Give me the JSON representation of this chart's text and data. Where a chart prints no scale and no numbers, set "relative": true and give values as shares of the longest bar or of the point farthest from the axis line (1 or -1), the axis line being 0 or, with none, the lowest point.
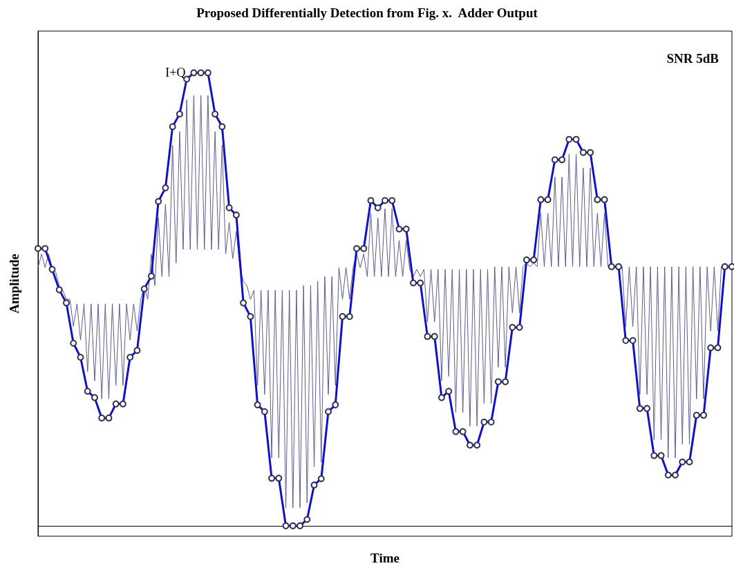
{
  "chart_data": {
    "type": "line",
    "relative": true,
    "title": "Proposed Differentially Detection from Fig. x.  Adder Output",
    "xlabel": "Time",
    "ylabel": "Amplitude",
    "annotations": [
      "I+Q",
      "SNR 5dB"
    ],
    "categories": [
      null,
      null,
      null,
      null,
      null,
      null,
      null,
      null,
      null,
      null,
      null,
      null,
      null,
      null,
      null,
      null,
      null,
      null,
      null,
      null,
      null,
      null,
      null,
      null,
      null,
      null,
      null,
      null,
      null,
      null,
      null,
      null,
      null,
      null,
      null,
      null,
      null,
      null,
      null,
      null,
      null,
      null,
      null,
      null,
      null,
      null,
      null,
      null,
      null,
      null,
      null,
      null,
      null,
      null,
      null,
      null,
      null,
      null,
      null,
      null,
      null,
      null,
      null,
      null,
      null,
      null,
      null,
      null,
      null,
      null,
      null,
      null,
      null,
      null,
      null,
      null,
      null,
      null,
      null,
      null,
      null,
      null,
      null,
      null,
      null,
      null,
      null,
      null,
      null,
      null,
      null,
      null,
      null,
      null,
      null,
      null,
      null,
      null,
      null,
      null,
      null,
      null,
      null,
      null,
      null,
      null,
      null,
      null,
      null,
      null,
      null,
      null,
      null,
      null,
      null,
      null,
      null,
      null,
      null,
      null,
      null,
      null,
      null,
      null,
      null,
      null,
      null,
      null,
      null,
      null,
      null,
      null,
      null,
      null,
      null,
      null,
      null,
      null,
      null,
      null,
      null,
      null,
      null,
      null,
      null,
      null,
      null,
      null,
      null,
      null,
      null,
      null,
      null,
      null,
      null,
      null,
      null,
      null,
      null,
      null,
      null,
      null,
      null,
      null,
      null,
      null,
      null,
      null,
      null,
      null,
      null,
      null,
      null,
      null,
      null,
      null,
      null,
      null,
      null,
      null,
      null,
      null,
      null,
      null,
      null,
      null,
      null,
      null,
      null,
      null,
      null,
      null,
      null,
      null,
      null,
      null,
      null
    ],
    "series": [
      {
        "color": "#5b5b8c",
        "marker": "none",
        "values": [
          0.57,
          0.6,
          0.57,
          0.6,
          0.57,
          0.56,
          0.53,
          0.52,
          0.5,
          0.5,
          0.44,
          0.49,
          0.41,
          0.49,
          0.34,
          0.49,
          0.32,
          0.49,
          0.28,
          0.49,
          0.28,
          0.49,
          0.31,
          0.49,
          0.31,
          0.49,
          0.41,
          0.49,
          0.43,
          0.5,
          0.53,
          0.5,
          0.6,
          0.53,
          0.68,
          0.55,
          0.71,
          0.55,
          0.84,
          0.58,
          0.87,
          0.61,
          0.94,
          0.61,
          0.95,
          0.61,
          0.95,
          0.61,
          0.95,
          0.61,
          0.87,
          0.61,
          0.84,
          0.6,
          0.67,
          0.59,
          0.65,
          0.57,
          0.54,
          0.53,
          0.5,
          0.52,
          0.31,
          0.52,
          0.29,
          0.52,
          0.15,
          0.52,
          0.15,
          0.52,
          0.04,
          0.52,
          0.04,
          0.52,
          0.04,
          0.53,
          0.05,
          0.53,
          0.13,
          0.54,
          0.14,
          0.55,
          0.29,
          0.55,
          0.31,
          0.57,
          0.5,
          0.57,
          0.5,
          0.57,
          0.6,
          0.57,
          0.6,
          0.55,
          0.69,
          0.55,
          0.68,
          0.55,
          0.7,
          0.55,
          0.7,
          0.55,
          0.63,
          0.55,
          0.63,
          0.566,
          0.55,
          0.566,
          0.55,
          0.566,
          0.45,
          0.566,
          0.45,
          0.566,
          0.32,
          0.566,
          0.33,
          0.566,
          0.25,
          0.566,
          0.25,
          0.566,
          0.22,
          0.566,
          0.22,
          0.566,
          0.27,
          0.566,
          0.27,
          0.572,
          0.35,
          0.572,
          0.35,
          0.572,
          0.47,
          0.572,
          0.47,
          0.572,
          0.58,
          0.572,
          0.58,
          0.572,
          0.69,
          0.572,
          0.69,
          0.572,
          0.77,
          0.572,
          0.77,
          0.572,
          0.82,
          0.572,
          0.82,
          0.572,
          0.79,
          0.572,
          0.79,
          0.572,
          0.69,
          0.572,
          0.69,
          0.572,
          0.572,
          0.572,
          0.572,
          0.572,
          0.44,
          0.572,
          0.44,
          0.572,
          0.29,
          0.572,
          0.29,
          0.572,
          0.19,
          0.572,
          0.19,
          0.572,
          0.15,
          0.572,
          0.15,
          0.572,
          0.18,
          0.572,
          0.18,
          0.572,
          0.28,
          0.572,
          0.28,
          0.572,
          0.43,
          0.572,
          0.43,
          0.572,
          0.572,
          0.572,
          0.572
        ]
      },
      {
        "color": "#1010c8",
        "marker": "circle",
        "values": [
          0.612,
          null,
          0.612,
          null,
          0.566,
          null,
          0.521,
          null,
          0.492,
          null,
          0.403,
          null,
          0.372,
          null,
          0.297,
          null,
          0.283,
          null,
          0.238,
          null,
          0.238,
          null,
          0.269,
          null,
          0.269,
          null,
          0.372,
          null,
          0.387,
          null,
          0.523,
          null,
          0.551,
          null,
          0.716,
          null,
          0.746,
          null,
          0.881,
          null,
          0.909,
          null,
          0.986,
          null,
          1,
          null,
          1,
          null,
          1,
          null,
          0.909,
          null,
          0.881,
          null,
          0.702,
          null,
          0.686,
          null,
          0.492,
          null,
          0.462,
          null,
          0.267,
          null,
          0.252,
          null,
          0.105,
          null,
          0.105,
          null,
          0,
          null,
          0,
          null,
          0,
          null,
          0.014,
          null,
          0.09,
          null,
          0.104,
          null,
          0.252,
          null,
          0.267,
          null,
          0.462,
          null,
          0.462,
          null,
          0.612,
          null,
          0.612,
          null,
          0.718,
          null,
          0.702,
          null,
          0.718,
          null,
          0.718,
          null,
          0.655,
          null,
          0.655,
          null,
          0.536,
          null,
          0.536,
          null,
          0.418,
          null,
          0.418,
          null,
          0.283,
          null,
          0.297,
          null,
          0.208,
          null,
          0.208,
          null,
          0.178,
          null,
          0.178,
          null,
          0.229,
          null,
          0.229,
          null,
          0.318,
          null,
          0.318,
          null,
          0.438,
          null,
          0.438,
          null,
          0.587,
          null,
          0.587,
          null,
          0.72,
          null,
          0.72,
          null,
          0.808,
          null,
          0.808,
          null,
          0.853,
          null,
          0.853,
          null,
          0.824,
          null,
          0.824,
          null,
          0.72,
          null,
          0.72,
          null,
          0.572,
          null,
          0.572,
          null,
          0.409,
          null,
          0.409,
          null,
          0.259,
          null,
          0.259,
          null,
          0.155,
          null,
          0.155,
          null,
          0.112,
          null,
          0.112,
          null,
          0.141,
          null,
          0.141,
          null,
          0.244,
          null,
          0.244,
          null,
          0.393,
          null,
          0.393,
          null,
          0.572,
          null,
          0.572
        ]
      }
    ]
  }
}
